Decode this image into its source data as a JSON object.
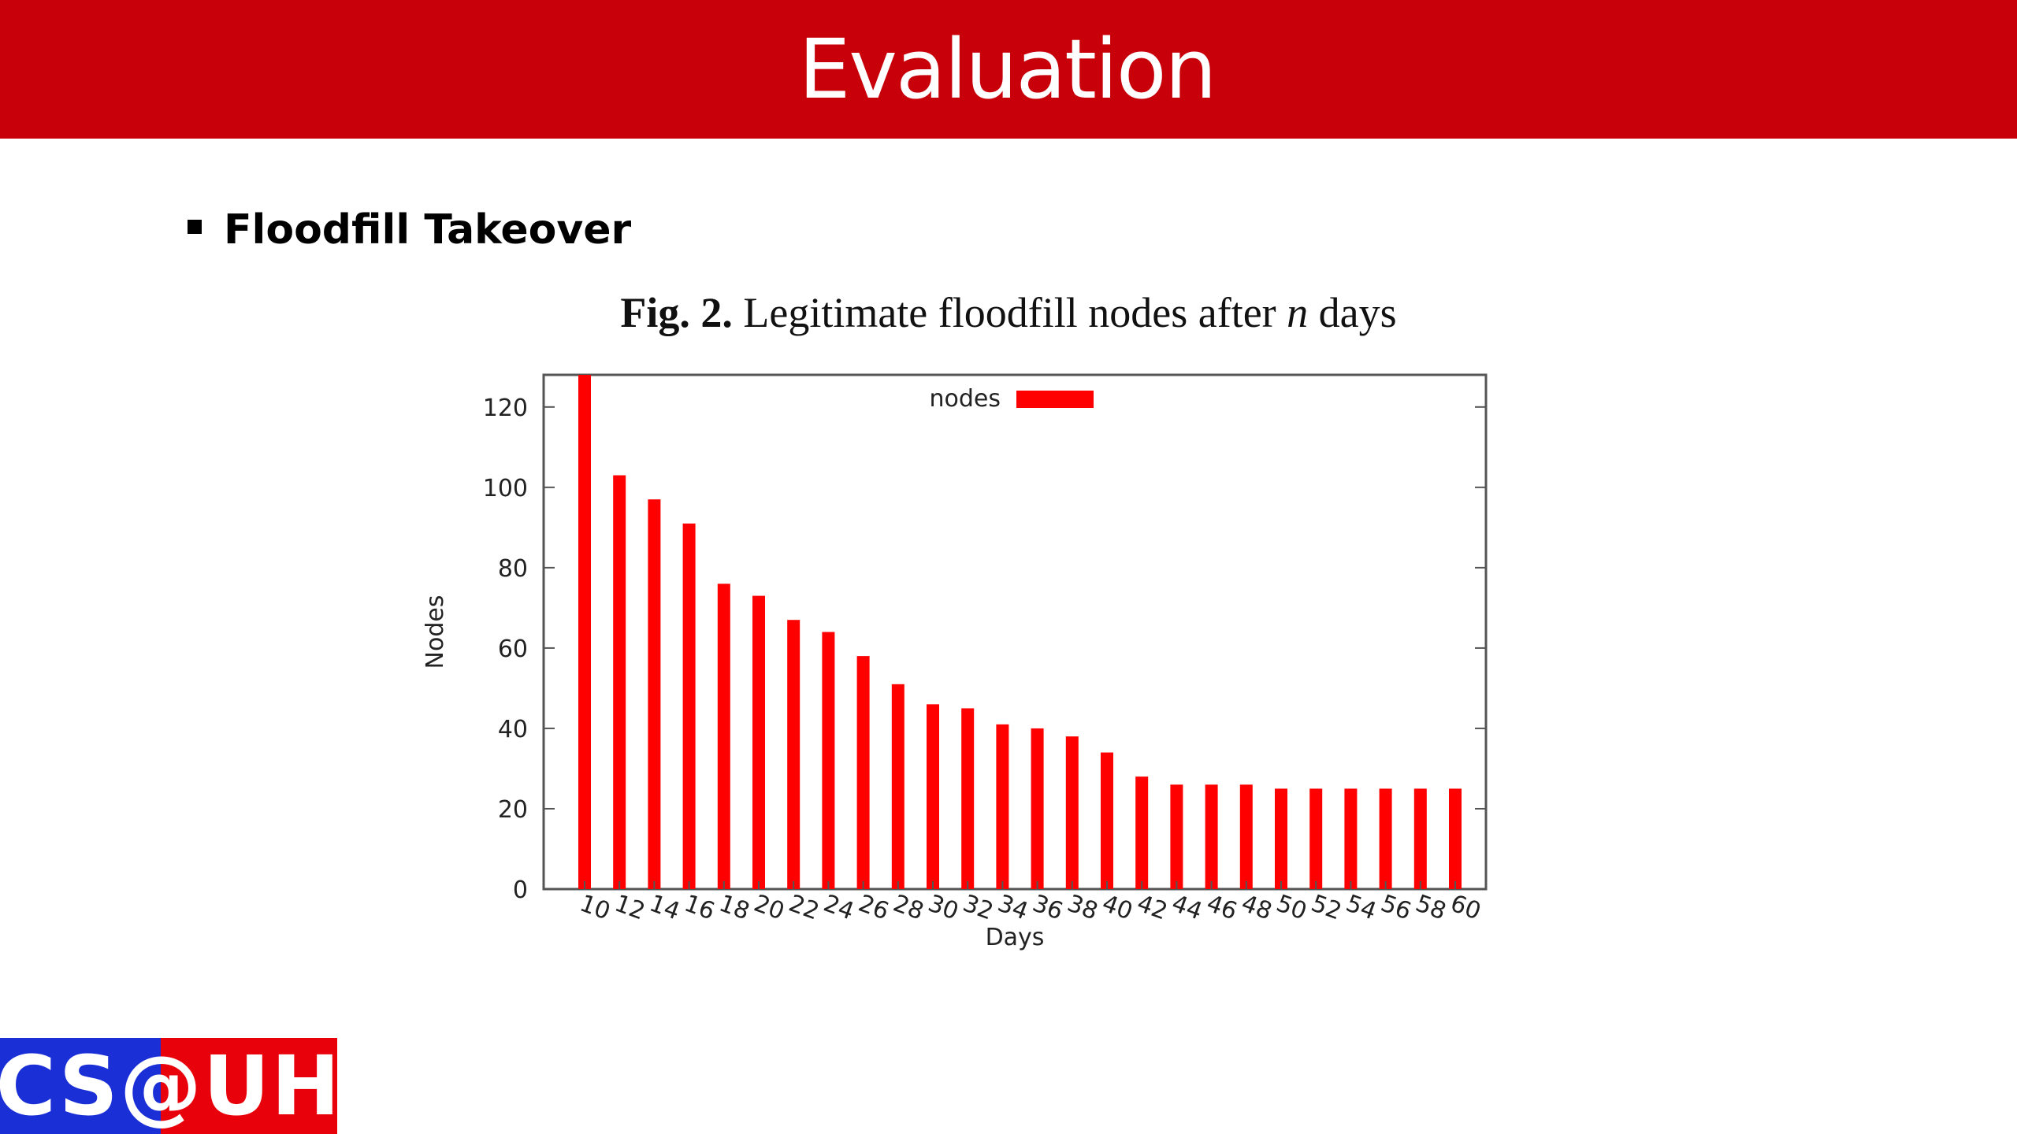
{
  "slide": {
    "title": "Evaluation",
    "bullet": "Floodfill Takeover",
    "figure_caption": {
      "label": "Fig. 2.",
      "text_before": " Legitimate floodfill nodes after ",
      "italic": "n",
      "text_after": " days"
    },
    "logo_text": "CS@UH",
    "colors": {
      "title_bar": "#c8000a",
      "bar": "#ff0000",
      "logo_blue": "#1a2fd6",
      "logo_red": "#e8000b"
    }
  },
  "chart_data": {
    "type": "bar",
    "xlabel": "Days",
    "ylabel": "Nodes",
    "ylim": [
      0,
      128
    ],
    "yticks": [
      0,
      20,
      40,
      60,
      80,
      100,
      120
    ],
    "legend": {
      "position": "top-center"
    },
    "grid": false,
    "categories": [
      "10",
      "12",
      "14",
      "16",
      "18",
      "20",
      "22",
      "24",
      "26",
      "28",
      "30",
      "32",
      "34",
      "36",
      "38",
      "40",
      "42",
      "44",
      "46",
      "48",
      "50",
      "52",
      "54",
      "56",
      "58",
      "60"
    ],
    "series": [
      {
        "name": "nodes",
        "color": "#ff0000",
        "values": [
          128,
          103,
          97,
          91,
          76,
          73,
          67,
          64,
          58,
          51,
          46,
          45,
          41,
          40,
          38,
          34,
          28,
          26,
          26,
          26,
          25,
          25,
          25,
          25,
          25,
          25
        ]
      }
    ]
  }
}
